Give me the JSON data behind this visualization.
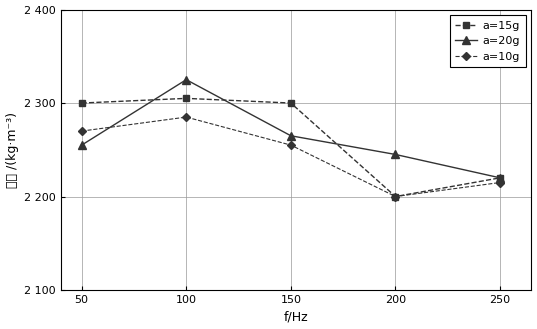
{
  "x": [
    50,
    100,
    150,
    200,
    250
  ],
  "series": [
    {
      "label": "a=15g",
      "values": [
        2300,
        2305,
        2300,
        2200,
        2220
      ],
      "color": "#333333",
      "marker": "s",
      "linestyle": "--",
      "markersize": 4,
      "linewidth": 1.0
    },
    {
      "label": "a=20g",
      "values": [
        2255,
        2325,
        2265,
        2245,
        2220
      ],
      "color": "#333333",
      "marker": "^",
      "linestyle": "-",
      "markersize": 6,
      "linewidth": 1.0
    },
    {
      "label": "a=10g",
      "values": [
        2270,
        2285,
        2255,
        2200,
        2215
      ],
      "color": "#333333",
      "marker": "D",
      "linestyle": "--",
      "markersize": 4,
      "linewidth": 0.8
    }
  ],
  "xlabel": "f/Hz",
  "ylabel": "容重 /(（kg·m⁻³)",
  "ylabel_display": "容重 /（kg·m⁻³）",
  "xlim": [
    40,
    265
  ],
  "ylim": [
    2100,
    2400
  ],
  "yticks": [
    2100,
    2200,
    2300,
    2400
  ],
  "xticks": [
    50,
    100,
    150,
    200,
    250
  ],
  "grid": true,
  "background_color": "#ffffff"
}
